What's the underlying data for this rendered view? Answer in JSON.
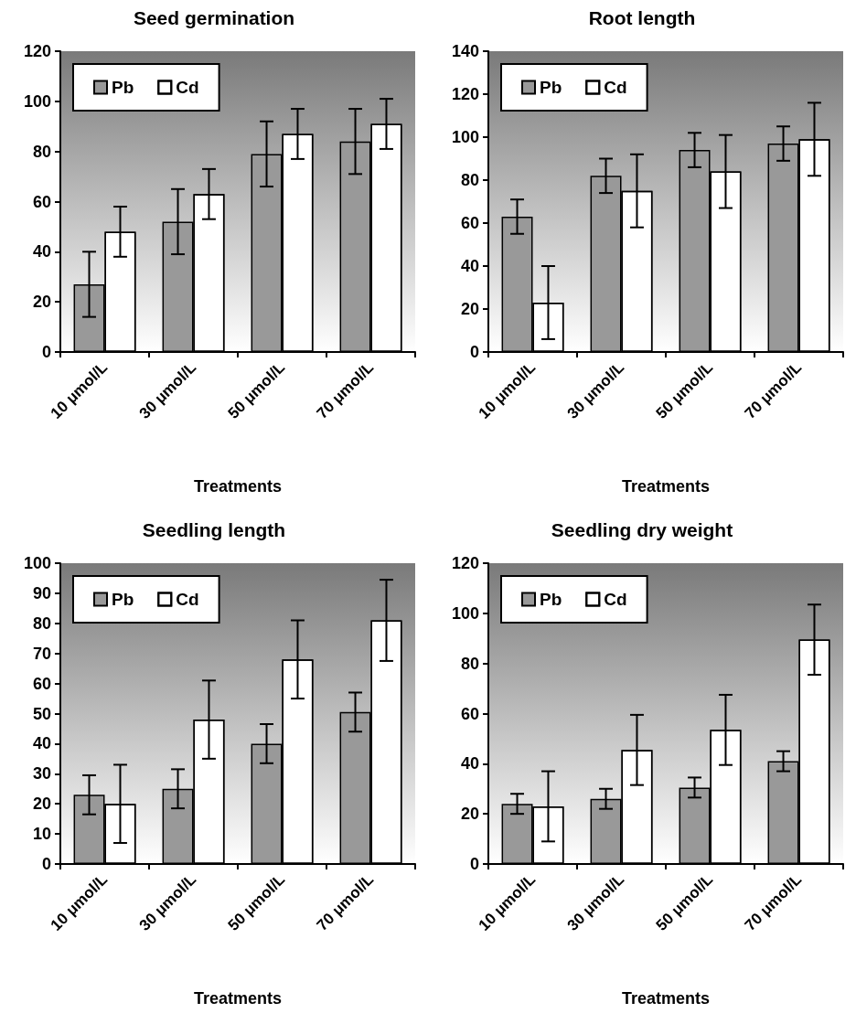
{
  "chart_data": [
    {
      "type": "bar",
      "title": "Seed germination",
      "xlabel": "Treatments",
      "categories": [
        "10 μmol/L",
        "30 μmol/L",
        "50 μmol/L",
        "70 μmol/L"
      ],
      "series": [
        {
          "name": "Pb",
          "color": "#999999",
          "values": [
            27,
            52,
            79,
            84
          ],
          "errors": [
            13,
            13,
            13,
            13
          ]
        },
        {
          "name": "Cd",
          "color": "#ffffff",
          "values": [
            48,
            63,
            87,
            91
          ],
          "errors": [
            10,
            10,
            10,
            10
          ]
        }
      ],
      "ylim": [
        0,
        120
      ],
      "yticks": [
        0,
        20,
        40,
        60,
        80,
        100,
        120
      ],
      "legend": "top left",
      "grid": false
    },
    {
      "type": "bar",
      "title": "Root length",
      "xlabel": "Treatments",
      "categories": [
        "10 μmol/L",
        "30 μmol/L",
        "50 μmol/L",
        "70 μmol/L"
      ],
      "series": [
        {
          "name": "Pb",
          "color": "#999999",
          "values": [
            63,
            82,
            94,
            97
          ],
          "errors": [
            8,
            8,
            8,
            8
          ]
        },
        {
          "name": "Cd",
          "color": "#ffffff",
          "values": [
            23,
            75,
            84,
            99
          ],
          "errors": [
            17,
            17,
            17,
            17
          ]
        }
      ],
      "ylim": [
        0,
        140
      ],
      "yticks": [
        0,
        20,
        40,
        60,
        80,
        100,
        120,
        140
      ],
      "legend": "top left",
      "grid": false
    },
    {
      "type": "bar",
      "title": "Seedling length",
      "xlabel": "Treatments",
      "categories": [
        "10 μmol/L",
        "30 μmol/L",
        "50 μmol/L",
        "70 μmol/L"
      ],
      "series": [
        {
          "name": "Pb",
          "color": "#999999",
          "values": [
            23,
            25,
            40,
            50.5
          ],
          "errors": [
            6.5,
            6.5,
            6.5,
            6.5
          ]
        },
        {
          "name": "Cd",
          "color": "#ffffff",
          "values": [
            20,
            48,
            68,
            81
          ],
          "errors": [
            13,
            13,
            13,
            13.5
          ]
        }
      ],
      "ylim": [
        0,
        100
      ],
      "yticks": [
        0,
        10,
        20,
        30,
        40,
        50,
        60,
        70,
        80,
        90,
        100
      ],
      "legend": "top left",
      "grid": false
    },
    {
      "type": "bar",
      "title": "Seedling dry weight",
      "xlabel": "Treatments",
      "categories": [
        "10 μmol/L",
        "30 μmol/L",
        "50 μmol/L",
        "70 μmol/L"
      ],
      "series": [
        {
          "name": "Pb",
          "color": "#999999",
          "values": [
            24,
            26,
            30.5,
            41
          ],
          "errors": [
            4,
            4,
            4,
            4
          ]
        },
        {
          "name": "Cd",
          "color": "#ffffff",
          "values": [
            23,
            45.5,
            53.5,
            89.5
          ],
          "errors": [
            14,
            14,
            14,
            14
          ]
        }
      ],
      "ylim": [
        0,
        120
      ],
      "yticks": [
        0,
        20,
        40,
        60,
        80,
        100,
        120
      ],
      "legend": "top left",
      "grid": false
    }
  ]
}
